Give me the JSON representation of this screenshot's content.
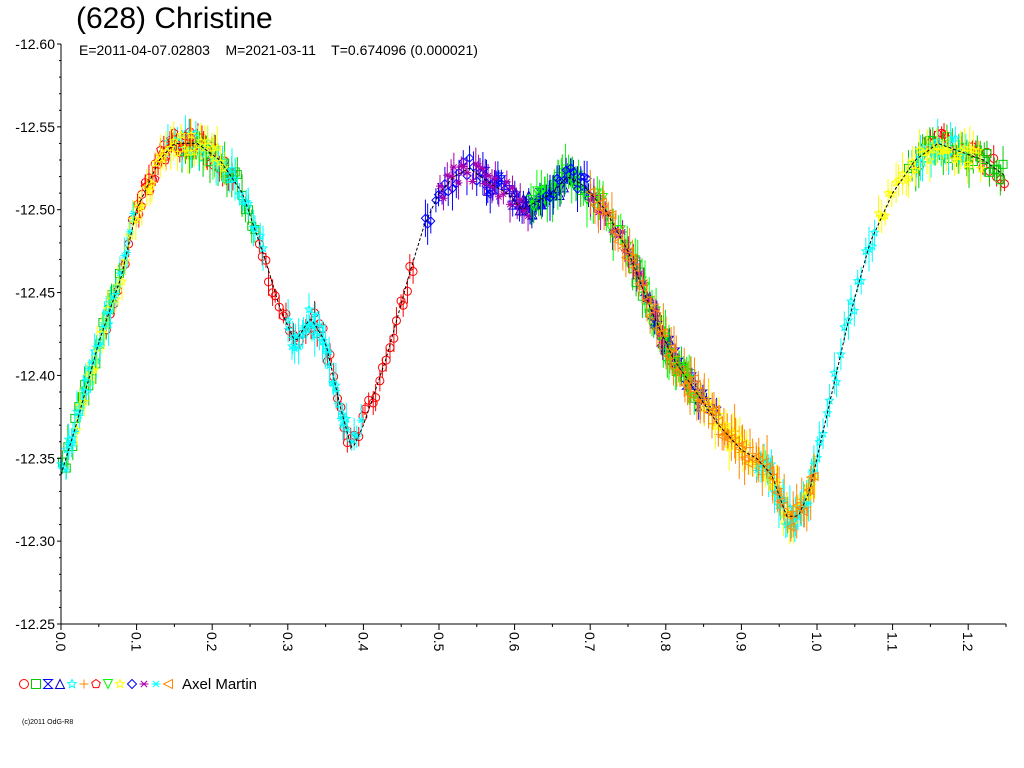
{
  "chart_data": {
    "type": "scatter",
    "title": "(628) Christine",
    "subtitle": "E=2011-04-07.02803    M=2021-03-11    T=0.674096 (0.000021)",
    "xlabel": "",
    "ylabel": "",
    "xlim": [
      0.0,
      1.25
    ],
    "ylim": [
      -12.25,
      -12.6
    ],
    "y_reversed": true,
    "x_ticks": [
      "0.0",
      "0.1",
      "0.2",
      "0.3",
      "0.4",
      "0.5",
      "0.6",
      "0.7",
      "0.8",
      "0.9",
      "1.0",
      "1.1",
      "1.2"
    ],
    "y_ticks": [
      "-12.60",
      "-12.55",
      "-12.50",
      "-12.45",
      "-12.40",
      "-12.35",
      "-12.30",
      "-12.25"
    ],
    "grid": false,
    "legend_position": "bottom-left",
    "legend_label": "Axel Martin",
    "copyright": "(c)2011 OdG-R8",
    "fit_curve": {
      "name": "",
      "x": [
        0.0,
        0.02,
        0.05,
        0.08,
        0.1,
        0.13,
        0.15,
        0.18,
        0.21,
        0.24,
        0.27,
        0.29,
        0.31,
        0.33,
        0.35,
        0.37,
        0.385,
        0.4,
        0.43,
        0.46,
        0.48,
        0.5,
        0.52,
        0.54,
        0.57,
        0.59,
        0.61,
        0.63,
        0.65,
        0.67,
        0.69,
        0.72,
        0.75,
        0.78,
        0.81,
        0.84,
        0.87,
        0.9,
        0.92,
        0.94,
        0.96,
        0.975,
        0.99,
        1.01,
        1.04,
        1.07,
        1.1,
        1.13,
        1.16,
        1.19,
        1.22,
        1.25
      ],
      "y": [
        -12.34,
        -12.37,
        -12.42,
        -12.46,
        -12.5,
        -12.53,
        -12.54,
        -12.54,
        -12.53,
        -12.51,
        -12.47,
        -12.44,
        -12.42,
        -12.435,
        -12.42,
        -12.38,
        -12.355,
        -12.37,
        -12.41,
        -12.46,
        -12.49,
        -12.51,
        -12.52,
        -12.525,
        -12.515,
        -12.51,
        -12.5,
        -12.505,
        -12.51,
        -12.52,
        -12.515,
        -12.5,
        -12.475,
        -12.44,
        -12.41,
        -12.39,
        -12.37,
        -12.355,
        -12.35,
        -12.34,
        -12.315,
        -12.315,
        -12.33,
        -12.37,
        -12.43,
        -12.48,
        -12.51,
        -12.53,
        -12.54,
        -12.535,
        -12.53,
        -12.52
      ]
    },
    "series": [
      {
        "symbol": "circle",
        "color": "#ff0000",
        "segments": [
          [
            0.06,
            0.23
          ],
          [
            0.16,
            0.23
          ],
          [
            0.26,
            0.36
          ],
          [
            0.36,
            0.47
          ],
          [
            1.13,
            1.25
          ]
        ],
        "err": 0.006
      },
      {
        "symbol": "square",
        "color": "#00cc00",
        "segments": [
          [
            0.0,
            0.08
          ],
          [
            0.16,
            0.26
          ],
          [
            0.62,
            0.69
          ],
          [
            0.75,
            0.85
          ],
          [
            1.12,
            1.25
          ]
        ],
        "err": 0.01
      },
      {
        "symbol": "hourglass",
        "color": "#0000ff",
        "segments": [
          [
            0.56,
            0.64
          ],
          [
            0.78,
            0.87
          ]
        ],
        "err": 0.006
      },
      {
        "symbol": "triangle",
        "color": "#0000cc",
        "segments": [
          [
            0.6,
            0.7
          ],
          [
            0.77,
            0.82
          ]
        ],
        "err": 0.006
      },
      {
        "symbol": "star",
        "color": "#00ffff",
        "segments": [
          [
            0.0,
            0.07
          ],
          [
            0.14,
            0.27
          ],
          [
            0.3,
            0.38
          ],
          [
            0.93,
            1.08
          ],
          [
            1.13,
            1.2
          ]
        ],
        "err": 0.01
      },
      {
        "symbol": "plus",
        "color": "#ff8800",
        "segments": [
          [
            0.79,
            1.0
          ]
        ],
        "err": 0.012
      },
      {
        "symbol": "pentagon",
        "color": "#ff0000",
        "segments": [
          [
            0.1,
            0.18
          ]
        ],
        "err": 0.005
      },
      {
        "symbol": "triangle-down",
        "color": "#00ff00",
        "segments": [
          [
            0.62,
            0.84
          ]
        ],
        "err": 0.012
      },
      {
        "symbol": "star",
        "color": "#ffff00",
        "segments": [
          [
            0.02,
            0.22
          ],
          [
            0.85,
            1.0
          ],
          [
            1.08,
            1.22
          ]
        ],
        "err": 0.01
      },
      {
        "symbol": "diamond",
        "color": "#0000ff",
        "segments": [
          [
            0.48,
            0.58
          ],
          [
            0.64,
            0.7
          ]
        ],
        "err": 0.01
      },
      {
        "symbol": "asterisk",
        "color": "#aa00aa",
        "segments": [
          [
            0.5,
            0.62
          ],
          [
            0.7,
            0.8
          ]
        ],
        "err": 0.008
      },
      {
        "symbol": "asterisk",
        "color": "#00ffff",
        "segments": [
          [
            0.0,
            0.1
          ],
          [
            0.3,
            0.4
          ],
          [
            0.92,
            1.0
          ]
        ],
        "err": 0.008
      },
      {
        "symbol": "triangle-left",
        "color": "#ff8800",
        "segments": [
          [
            0.7,
            1.0
          ]
        ],
        "err": 0.01
      }
    ]
  }
}
